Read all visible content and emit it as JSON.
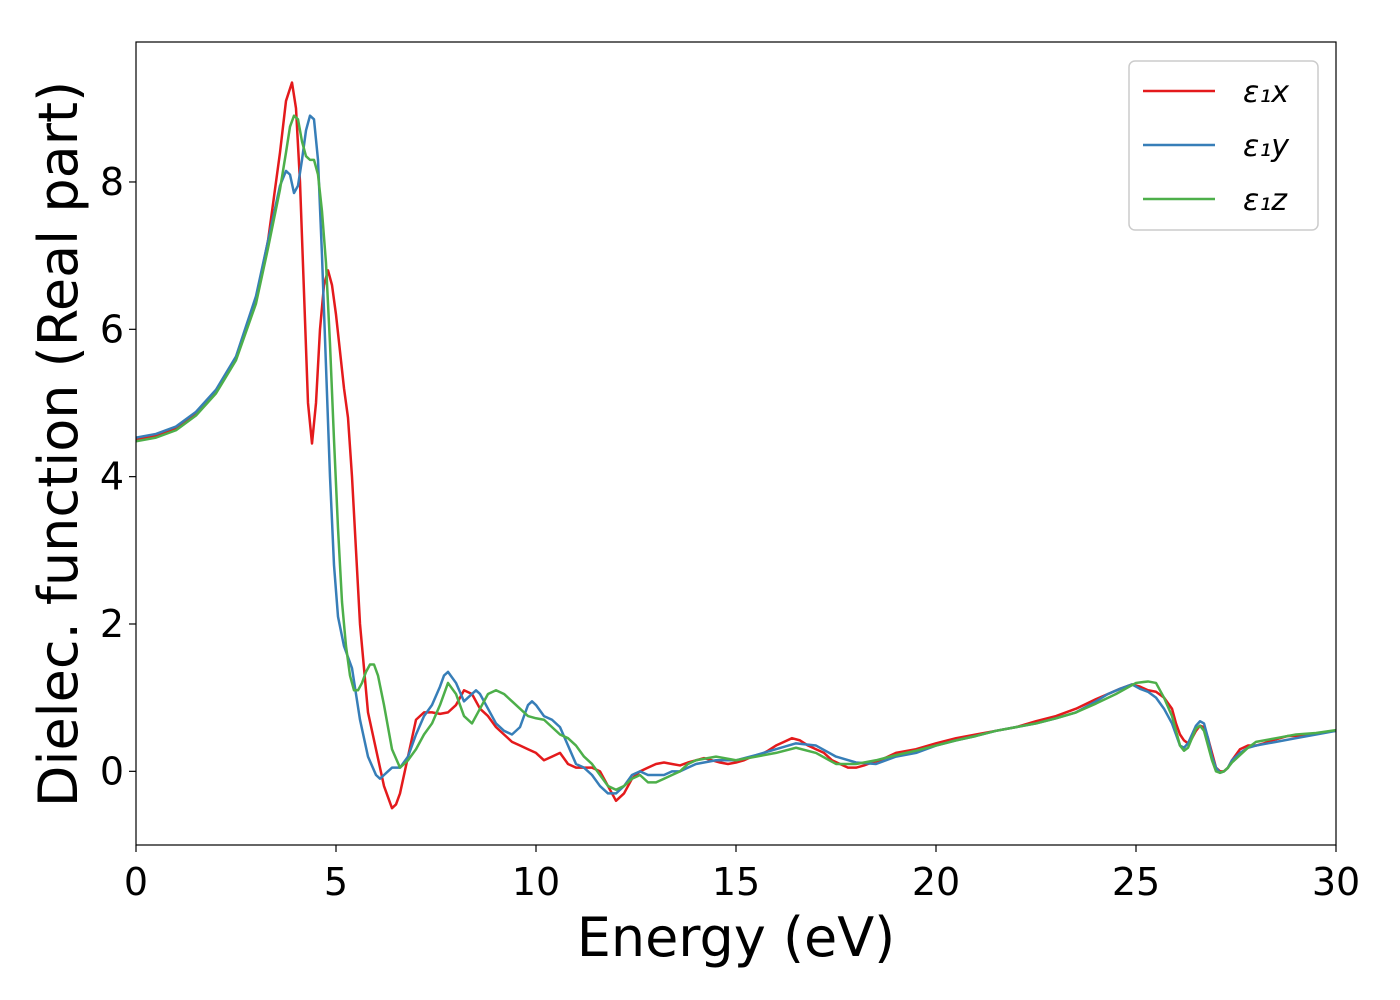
{
  "chart_data": {
    "type": "line",
    "xlabel": "Energy (eV)",
    "ylabel": "Dielec. function (Real part)",
    "xlim": [
      0,
      30
    ],
    "ylim": [
      -1.0,
      9.9
    ],
    "xticks": [
      0,
      5,
      10,
      15,
      20,
      25,
      30
    ],
    "yticks": [
      0,
      2,
      4,
      6,
      8
    ],
    "grid": false,
    "legend_position": "top-right",
    "series": [
      {
        "name": "ε₁x",
        "color": "#e41a1c",
        "x": [
          0.0,
          0.5,
          1.0,
          1.5,
          2.0,
          2.5,
          3.0,
          3.3,
          3.6,
          3.75,
          3.9,
          4.0,
          4.1,
          4.2,
          4.3,
          4.4,
          4.5,
          4.6,
          4.7,
          4.8,
          4.9,
          5.0,
          5.1,
          5.2,
          5.3,
          5.4,
          5.5,
          5.6,
          5.8,
          6.0,
          6.2,
          6.4,
          6.5,
          6.6,
          6.8,
          7.0,
          7.2,
          7.4,
          7.6,
          7.8,
          8.0,
          8.2,
          8.4,
          8.6,
          8.8,
          9.0,
          9.2,
          9.4,
          9.6,
          9.8,
          10.0,
          10.2,
          10.4,
          10.6,
          10.8,
          11.0,
          11.2,
          11.4,
          11.6,
          11.8,
          12.0,
          12.2,
          12.4,
          12.6,
          12.8,
          13.0,
          13.2,
          13.4,
          13.6,
          13.8,
          14.0,
          14.2,
          14.4,
          14.6,
          14.8,
          15.0,
          15.2,
          15.4,
          15.6,
          15.8,
          16.0,
          16.2,
          16.4,
          16.6,
          16.8,
          17.0,
          17.2,
          17.4,
          17.6,
          17.8,
          18.0,
          18.2,
          18.4,
          18.6,
          18.8,
          19.0,
          19.5,
          20.0,
          20.5,
          21.0,
          21.5,
          22.0,
          22.5,
          23.0,
          23.5,
          24.0,
          24.3,
          24.6,
          24.9,
          25.1,
          25.3,
          25.5,
          25.7,
          25.9,
          26.0,
          26.1,
          26.2,
          26.3,
          26.4,
          26.5,
          26.6,
          26.7,
          26.8,
          26.9,
          27.0,
          27.1,
          27.2,
          27.3,
          27.4,
          27.6,
          27.8,
          28.0,
          28.2,
          28.4,
          28.6,
          28.8,
          29.0,
          29.2,
          29.4,
          29.6,
          29.8,
          30.0
        ],
        "y": [
          4.5,
          4.55,
          4.65,
          4.85,
          5.15,
          5.6,
          6.4,
          7.2,
          8.4,
          9.1,
          9.35,
          9.0,
          8.0,
          6.5,
          5.0,
          4.45,
          5.0,
          6.0,
          6.6,
          6.8,
          6.6,
          6.2,
          5.7,
          5.2,
          4.8,
          4.0,
          3.0,
          2.0,
          0.8,
          0.3,
          -0.2,
          -0.5,
          -0.45,
          -0.3,
          0.2,
          0.7,
          0.8,
          0.8,
          0.78,
          0.8,
          0.9,
          1.1,
          1.05,
          0.85,
          0.75,
          0.6,
          0.5,
          0.4,
          0.35,
          0.3,
          0.25,
          0.15,
          0.2,
          0.25,
          0.1,
          0.05,
          0.05,
          0.05,
          0.0,
          -0.2,
          -0.4,
          -0.3,
          -0.1,
          0.0,
          0.05,
          0.1,
          0.12,
          0.1,
          0.08,
          0.12,
          0.15,
          0.18,
          0.15,
          0.12,
          0.1,
          0.12,
          0.15,
          0.2,
          0.22,
          0.28,
          0.35,
          0.4,
          0.45,
          0.42,
          0.35,
          0.3,
          0.25,
          0.15,
          0.1,
          0.05,
          0.05,
          0.08,
          0.12,
          0.15,
          0.2,
          0.25,
          0.3,
          0.38,
          0.45,
          0.5,
          0.55,
          0.6,
          0.68,
          0.75,
          0.85,
          0.98,
          1.05,
          1.12,
          1.18,
          1.15,
          1.1,
          1.08,
          1.0,
          0.85,
          0.65,
          0.5,
          0.42,
          0.38,
          0.45,
          0.55,
          0.62,
          0.6,
          0.45,
          0.25,
          0.05,
          0.0,
          0.0,
          0.05,
          0.15,
          0.3,
          0.35,
          0.35,
          0.38,
          0.42,
          0.45,
          0.48,
          0.48,
          0.48,
          0.5,
          0.52,
          0.54,
          0.55
        ]
      },
      {
        "name": "ε₁y",
        "color": "#377eb8",
        "x": [
          0.0,
          0.5,
          1.0,
          1.5,
          2.0,
          2.5,
          3.0,
          3.3,
          3.6,
          3.75,
          3.85,
          3.95,
          4.05,
          4.15,
          4.25,
          4.35,
          4.45,
          4.55,
          4.65,
          4.75,
          4.85,
          4.95,
          5.05,
          5.2,
          5.4,
          5.6,
          5.8,
          6.0,
          6.1,
          6.2,
          6.3,
          6.4,
          6.6,
          6.8,
          7.0,
          7.2,
          7.4,
          7.6,
          7.7,
          7.8,
          8.0,
          8.2,
          8.4,
          8.5,
          8.6,
          8.8,
          9.0,
          9.2,
          9.4,
          9.6,
          9.8,
          9.9,
          10.0,
          10.2,
          10.4,
          10.6,
          10.8,
          11.0,
          11.2,
          11.4,
          11.6,
          11.8,
          12.0,
          12.2,
          12.4,
          12.6,
          12.8,
          13.0,
          13.2,
          13.4,
          13.6,
          13.8,
          14.0,
          14.5,
          15.0,
          15.5,
          16.0,
          16.5,
          17.0,
          17.5,
          18.0,
          18.5,
          19.0,
          19.5,
          20.0,
          20.5,
          21.0,
          21.5,
          22.0,
          22.5,
          23.0,
          23.5,
          24.0,
          24.3,
          24.6,
          24.9,
          25.1,
          25.3,
          25.5,
          25.7,
          25.9,
          26.0,
          26.1,
          26.2,
          26.3,
          26.4,
          26.5,
          26.6,
          26.7,
          26.8,
          26.9,
          27.0,
          27.1,
          27.2,
          27.3,
          27.4,
          27.6,
          27.8,
          28.0,
          28.5,
          29.0,
          29.5,
          30.0
        ],
        "y": [
          4.53,
          4.58,
          4.68,
          4.88,
          5.18,
          5.63,
          6.45,
          7.2,
          7.95,
          8.15,
          8.1,
          7.85,
          7.95,
          8.3,
          8.7,
          8.9,
          8.85,
          8.3,
          7.0,
          5.5,
          4.0,
          2.8,
          2.1,
          1.7,
          1.4,
          0.7,
          0.2,
          -0.05,
          -0.1,
          -0.05,
          0.0,
          0.05,
          0.05,
          0.2,
          0.5,
          0.75,
          0.9,
          1.15,
          1.3,
          1.35,
          1.2,
          0.95,
          1.05,
          1.1,
          1.05,
          0.85,
          0.65,
          0.55,
          0.5,
          0.6,
          0.9,
          0.95,
          0.9,
          0.75,
          0.7,
          0.6,
          0.35,
          0.1,
          0.05,
          -0.05,
          -0.2,
          -0.3,
          -0.3,
          -0.2,
          -0.05,
          0.0,
          -0.05,
          -0.05,
          -0.05,
          0.0,
          0.0,
          0.05,
          0.1,
          0.15,
          0.15,
          0.22,
          0.3,
          0.38,
          0.35,
          0.2,
          0.12,
          0.1,
          0.2,
          0.25,
          0.35,
          0.42,
          0.48,
          0.55,
          0.6,
          0.65,
          0.72,
          0.8,
          0.95,
          1.05,
          1.12,
          1.18,
          1.12,
          1.08,
          1.0,
          0.85,
          0.65,
          0.5,
          0.35,
          0.32,
          0.38,
          0.5,
          0.62,
          0.68,
          0.65,
          0.45,
          0.2,
          0.05,
          -0.02,
          0.0,
          0.05,
          0.15,
          0.25,
          0.32,
          0.35,
          0.4,
          0.45,
          0.5,
          0.55
        ]
      },
      {
        "name": "ε₁z",
        "color": "#4daf4a",
        "x": [
          0.0,
          0.5,
          1.0,
          1.5,
          2.0,
          2.5,
          3.0,
          3.3,
          3.6,
          3.75,
          3.85,
          3.95,
          4.05,
          4.15,
          4.25,
          4.35,
          4.45,
          4.55,
          4.65,
          4.75,
          4.85,
          4.95,
          5.05,
          5.15,
          5.25,
          5.35,
          5.45,
          5.55,
          5.65,
          5.75,
          5.85,
          5.95,
          6.05,
          6.2,
          6.4,
          6.6,
          6.8,
          7.0,
          7.2,
          7.4,
          7.6,
          7.8,
          8.0,
          8.2,
          8.4,
          8.6,
          8.8,
          9.0,
          9.2,
          9.4,
          9.6,
          9.8,
          10.0,
          10.2,
          10.4,
          10.6,
          10.8,
          11.0,
          11.2,
          11.4,
          11.6,
          11.8,
          12.0,
          12.2,
          12.4,
          12.6,
          12.8,
          13.0,
          13.2,
          13.4,
          13.6,
          13.8,
          14.0,
          14.5,
          15.0,
          15.5,
          16.0,
          16.5,
          17.0,
          17.5,
          18.0,
          18.5,
          19.0,
          19.5,
          20.0,
          20.5,
          21.0,
          21.5,
          22.0,
          22.5,
          23.0,
          23.5,
          24.0,
          24.5,
          25.0,
          25.3,
          25.5,
          25.7,
          25.9,
          26.0,
          26.1,
          26.2,
          26.3,
          26.4,
          26.5,
          26.6,
          26.7,
          26.8,
          26.9,
          27.0,
          27.1,
          27.2,
          27.3,
          27.4,
          27.6,
          27.8,
          28.0,
          28.5,
          29.0,
          29.5,
          30.0
        ],
        "y": [
          4.48,
          4.53,
          4.63,
          4.83,
          5.13,
          5.58,
          6.35,
          7.1,
          7.9,
          8.4,
          8.75,
          8.9,
          8.85,
          8.55,
          8.35,
          8.3,
          8.3,
          8.1,
          7.6,
          6.9,
          5.8,
          4.5,
          3.3,
          2.3,
          1.7,
          1.3,
          1.1,
          1.1,
          1.2,
          1.35,
          1.45,
          1.45,
          1.3,
          0.9,
          0.3,
          0.05,
          0.15,
          0.3,
          0.5,
          0.65,
          0.9,
          1.2,
          1.05,
          0.75,
          0.65,
          0.85,
          1.05,
          1.1,
          1.05,
          0.95,
          0.85,
          0.75,
          0.72,
          0.7,
          0.6,
          0.5,
          0.45,
          0.35,
          0.2,
          0.1,
          -0.05,
          -0.2,
          -0.25,
          -0.2,
          -0.1,
          -0.05,
          -0.15,
          -0.15,
          -0.1,
          -0.05,
          0.0,
          0.1,
          0.15,
          0.2,
          0.15,
          0.2,
          0.25,
          0.32,
          0.25,
          0.1,
          0.1,
          0.15,
          0.22,
          0.28,
          0.35,
          0.42,
          0.48,
          0.55,
          0.6,
          0.65,
          0.72,
          0.8,
          0.92,
          1.05,
          1.2,
          1.22,
          1.2,
          1.0,
          0.75,
          0.55,
          0.35,
          0.28,
          0.32,
          0.45,
          0.58,
          0.62,
          0.55,
          0.35,
          0.15,
          0.0,
          -0.02,
          0.0,
          0.05,
          0.12,
          0.22,
          0.32,
          0.4,
          0.45,
          0.5,
          0.52,
          0.56
        ]
      }
    ]
  }
}
